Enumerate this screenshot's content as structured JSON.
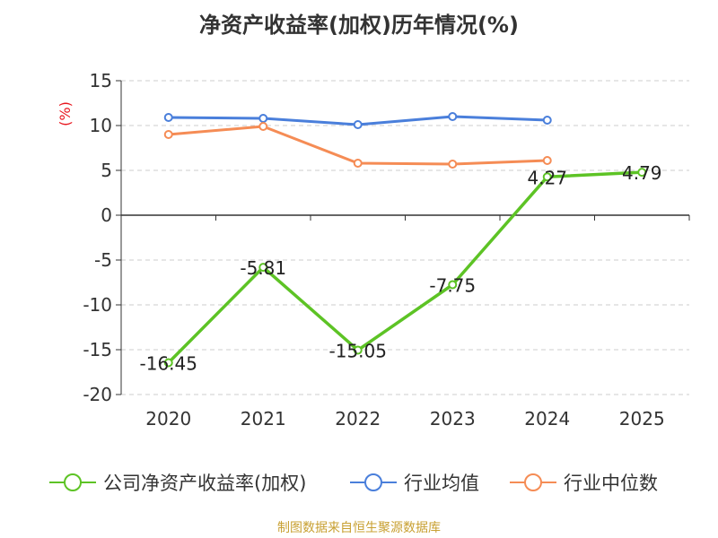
{
  "chart_data": {
    "type": "line",
    "title": "净资产收益率(加权)历年情况(%)",
    "ylabel": "(%)",
    "categories": [
      "2020",
      "2021",
      "2022",
      "2023",
      "2024",
      "2025"
    ],
    "ylim": [
      -20,
      15
    ],
    "yticks": [
      15,
      10,
      5,
      0,
      -5,
      -10,
      -15,
      -20
    ],
    "grid": true,
    "legend_position": "bottom",
    "series": [
      {
        "name": "公司净资产收益率(加权)",
        "color": "#5dc325",
        "values": [
          -16.45,
          -5.81,
          -15.05,
          -7.75,
          4.27,
          4.79
        ],
        "labels": [
          "-16.45",
          "-5.81",
          "-15.05",
          "-7.75",
          "4.27",
          "4.79"
        ]
      },
      {
        "name": "行业均值",
        "color": "#4a7fdb",
        "values": [
          10.9,
          10.8,
          10.1,
          11.0,
          10.6,
          null
        ],
        "labels": []
      },
      {
        "name": "行业中位数",
        "color": "#f58c55",
        "values": [
          9.0,
          9.9,
          5.8,
          5.7,
          6.1,
          null
        ],
        "labels": []
      }
    ]
  },
  "source": "制图数据来自恒生聚源数据库"
}
